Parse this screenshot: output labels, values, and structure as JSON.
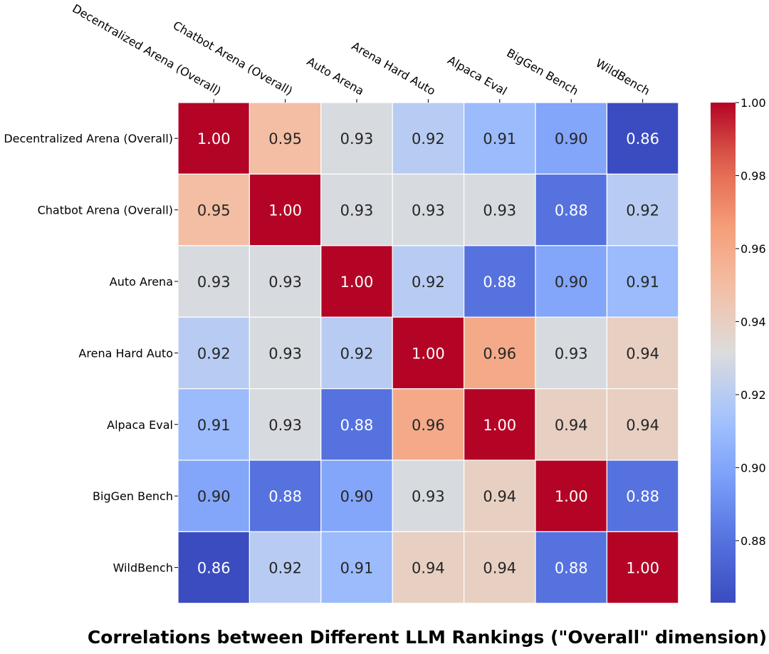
{
  "chart_data": {
    "type": "heatmap",
    "title": "Correlations between Different LLM Rankings (\"Overall\" dimension)",
    "rows": [
      "Decentralized Arena (Overall)",
      "Chatbot Arena (Overall)",
      "Auto Arena",
      "Arena Hard Auto",
      "Alpaca Eval",
      "BigGen Bench",
      "WildBench"
    ],
    "columns": [
      "Decentralized Arena (Overall)",
      "Chatbot Arena (Overall)",
      "Auto Arena",
      "Arena Hard Auto",
      "Alpaca Eval",
      "BigGen Bench",
      "WildBench"
    ],
    "values": [
      [
        1.0,
        0.95,
        0.93,
        0.92,
        0.91,
        0.9,
        0.86
      ],
      [
        0.95,
        1.0,
        0.93,
        0.93,
        0.93,
        0.88,
        0.92
      ],
      [
        0.93,
        0.93,
        1.0,
        0.92,
        0.88,
        0.9,
        0.91
      ],
      [
        0.92,
        0.93,
        0.92,
        1.0,
        0.96,
        0.93,
        0.94
      ],
      [
        0.91,
        0.93,
        0.88,
        0.96,
        1.0,
        0.94,
        0.94
      ],
      [
        0.9,
        0.88,
        0.9,
        0.93,
        0.94,
        1.0,
        0.88
      ],
      [
        0.86,
        0.92,
        0.91,
        0.94,
        0.94,
        0.88,
        1.0
      ]
    ],
    "value_labels": [
      [
        "1.00",
        "0.95",
        "0.93",
        "0.92",
        "0.91",
        "0.90",
        "0.86"
      ],
      [
        "0.95",
        "1.00",
        "0.93",
        "0.93",
        "0.93",
        "0.88",
        "0.92"
      ],
      [
        "0.93",
        "0.93",
        "1.00",
        "0.92",
        "0.88",
        "0.90",
        "0.91"
      ],
      [
        "0.92",
        "0.93",
        "0.92",
        "1.00",
        "0.96",
        "0.93",
        "0.94"
      ],
      [
        "0.91",
        "0.93",
        "0.88",
        "0.96",
        "1.00",
        "0.94",
        "0.94"
      ],
      [
        "0.90",
        "0.88",
        "0.90",
        "0.93",
        "0.94",
        "1.00",
        "0.88"
      ],
      [
        "0.86",
        "0.92",
        "0.91",
        "0.94",
        "0.94",
        "0.88",
        "1.00"
      ]
    ],
    "colorscale": "coolwarm",
    "colorbar": {
      "min": 0.863,
      "max": 1.0,
      "ticks": [
        0.88,
        0.9,
        0.92,
        0.94,
        0.96,
        0.98,
        1.0
      ],
      "tick_labels": [
        "0.88",
        "0.90",
        "0.92",
        "0.94",
        "0.96",
        "0.98",
        "1.00"
      ]
    },
    "column_labels_position": "top",
    "grid": false
  }
}
